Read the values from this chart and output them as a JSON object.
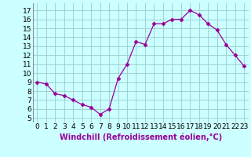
{
  "x": [
    0,
    1,
    2,
    3,
    4,
    5,
    6,
    7,
    8,
    9,
    10,
    11,
    12,
    13,
    14,
    15,
    16,
    17,
    18,
    19,
    20,
    21,
    22,
    23
  ],
  "y": [
    9.0,
    8.8,
    7.7,
    7.5,
    7.0,
    6.5,
    6.2,
    5.4,
    6.0,
    9.4,
    11.0,
    13.5,
    13.2,
    15.5,
    15.5,
    16.0,
    16.0,
    17.0,
    16.5,
    15.5,
    14.8,
    13.2,
    12.0,
    10.8
  ],
  "line_color": "#990099",
  "marker": "D",
  "marker_size": 2.5,
  "bg_color": "#ccffff",
  "grid_color": "#99cccc",
  "xlabel": "Windchill (Refroidissement éolien,°C)",
  "ylabel_ticks": [
    5,
    6,
    7,
    8,
    9,
    10,
    11,
    12,
    13,
    14,
    15,
    16,
    17
  ],
  "ylim": [
    4.5,
    17.8
  ],
  "xlim": [
    -0.5,
    23.5
  ],
  "xlabel_fontsize": 7,
  "tick_fontsize": 6.5
}
